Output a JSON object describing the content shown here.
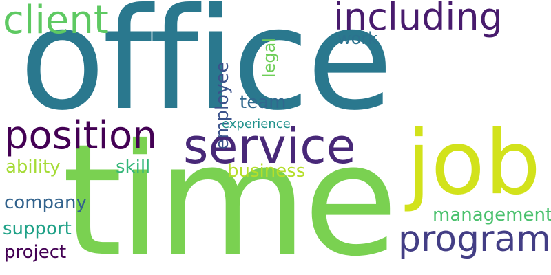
{
  "words": [
    {
      "text": "office",
      "color": "#2a788e"
    },
    {
      "text": "time",
      "color": "#7ad151"
    },
    {
      "text": "job",
      "color": "#d2e21b"
    },
    {
      "text": "service",
      "color": "#482878"
    },
    {
      "text": "program",
      "color": "#433e85"
    },
    {
      "text": "position",
      "color": "#440154"
    },
    {
      "text": "including",
      "color": "#481b6d"
    },
    {
      "text": "client",
      "color": "#5ec962"
    },
    {
      "text": "team",
      "color": "#31688e"
    },
    {
      "text": "employee",
      "color": "#3b528b"
    },
    {
      "text": "legal",
      "color": "#6ece58"
    },
    {
      "text": "work",
      "color": "#2c728e"
    },
    {
      "text": "experience",
      "color": "#21918c"
    },
    {
      "text": "ability",
      "color": "#a5db36"
    },
    {
      "text": "skill",
      "color": "#35b779"
    },
    {
      "text": "business",
      "color": "#b5de2b"
    },
    {
      "text": "company",
      "color": "#33638d"
    },
    {
      "text": "support",
      "color": "#1fa187"
    },
    {
      "text": "project",
      "color": "#440154"
    },
    {
      "text": "management",
      "color": "#4ac16d"
    }
  ]
}
